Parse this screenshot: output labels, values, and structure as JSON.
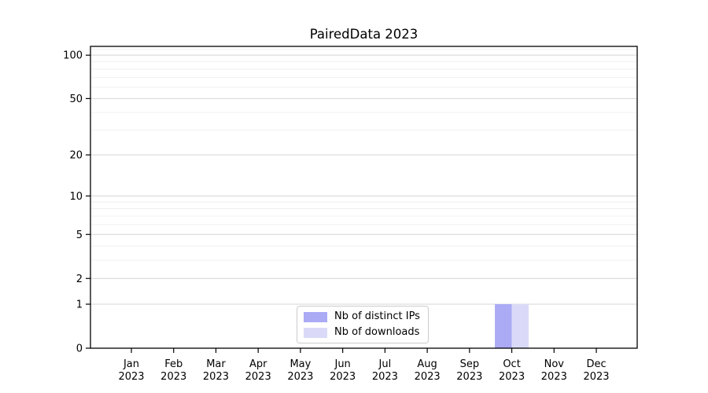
{
  "title": "PairedData 2023",
  "chart_data": {
    "type": "bar",
    "title": "PairedData 2023",
    "categories": [
      {
        "month": "Jan",
        "year": "2023"
      },
      {
        "month": "Feb",
        "year": "2023"
      },
      {
        "month": "Mar",
        "year": "2023"
      },
      {
        "month": "Apr",
        "year": "2023"
      },
      {
        "month": "May",
        "year": "2023"
      },
      {
        "month": "Jun",
        "year": "2023"
      },
      {
        "month": "Jul",
        "year": "2023"
      },
      {
        "month": "Aug",
        "year": "2023"
      },
      {
        "month": "Sep",
        "year": "2023"
      },
      {
        "month": "Oct",
        "year": "2023"
      },
      {
        "month": "Nov",
        "year": "2023"
      },
      {
        "month": "Dec",
        "year": "2023"
      }
    ],
    "series": [
      {
        "name": "Nb of distinct IPs",
        "color": "#aaaaf5",
        "values": [
          0,
          0,
          0,
          0,
          0,
          0,
          0,
          0,
          0,
          1,
          0,
          0
        ]
      },
      {
        "name": "Nb of downloads",
        "color": "#dadaf8",
        "values": [
          0,
          0,
          0,
          0,
          0,
          0,
          0,
          0,
          0,
          1,
          0,
          0
        ]
      }
    ],
    "xlabel": "",
    "ylabel": "",
    "yscale": "log1p",
    "ylim": [
      0,
      115
    ],
    "y_major_ticks": [
      0,
      1,
      2,
      5,
      10,
      20,
      50,
      100
    ],
    "y_minor_ticks": [
      3,
      4,
      6,
      7,
      8,
      9,
      30,
      40,
      60,
      70,
      80,
      90,
      110
    ],
    "grid": "both",
    "grid_major_color": "#d4d4d4",
    "grid_minor_color": "#efefef",
    "axis_color": "#000000",
    "legend_position": "lower center"
  }
}
